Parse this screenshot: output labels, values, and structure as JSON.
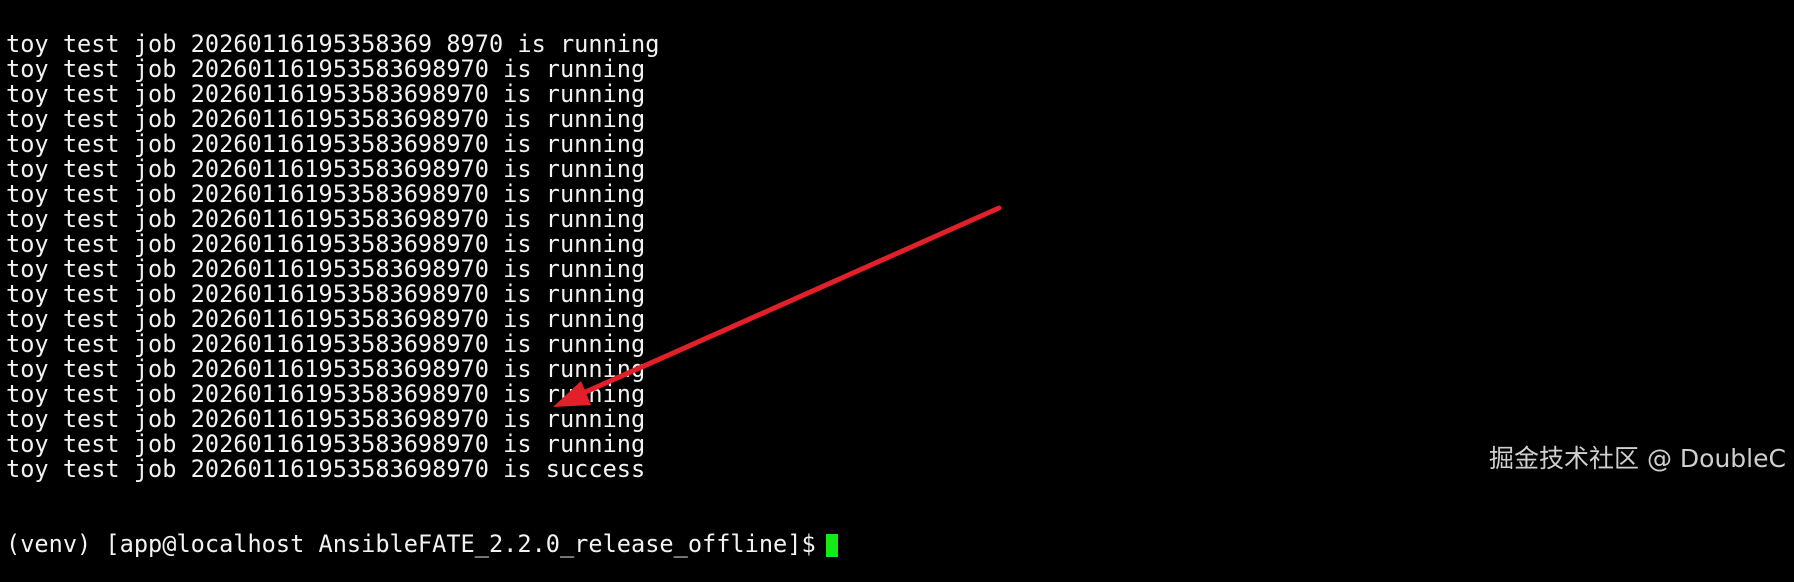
{
  "terminal": {
    "lines": [
      "toy test job 20260116195358369 8970 is running",
      "toy test job 202601161953583698970 is running",
      "toy test job 202601161953583698970 is running",
      "toy test job 202601161953583698970 is running",
      "toy test job 202601161953583698970 is running",
      "toy test job 202601161953583698970 is running",
      "toy test job 202601161953583698970 is running",
      "toy test job 202601161953583698970 is running",
      "toy test job 202601161953583698970 is running",
      "toy test job 202601161953583698970 is running",
      "toy test job 202601161953583698970 is running",
      "toy test job 202601161953583698970 is running",
      "toy test job 202601161953583698970 is running",
      "toy test job 202601161953583698970 is running",
      "toy test job 202601161953583698970 is running",
      "toy test job 202601161953583698970 is running",
      "toy test job 202601161953583698970 is running",
      "toy test job 202601161953583698970 is success"
    ],
    "prompt": "(venv) [app@localhost AnsibleFATE_2.2.0_release_offline]$",
    "cursor_color": "#17e817"
  },
  "annotation": {
    "arrow_color": "#e3202a",
    "points_to": "success line"
  },
  "watermark": "掘金技术社区 @ DoubleC"
}
